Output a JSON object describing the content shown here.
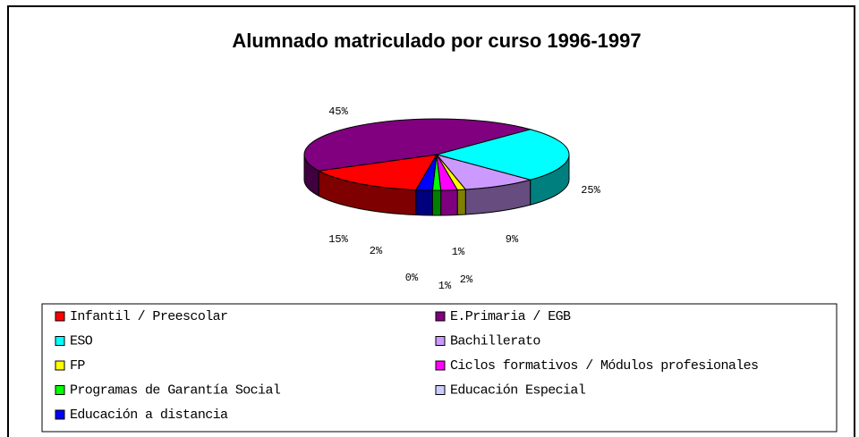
{
  "chart_data": {
    "type": "pie3d",
    "title": "Alumnado matriculado por curso 1996-1997",
    "categories": [
      "Infantil / Preescolar",
      "E.Primaria / EGB",
      "ESO",
      "Bachillerato",
      "FP",
      "Ciclos formativos / Módulos profesionales",
      "Programas de Garantía Social",
      "Educación Especial",
      "Educación a distancia"
    ],
    "values": [
      15,
      45,
      25,
      9,
      1,
      2,
      1,
      0,
      2
    ],
    "value_labels": [
      "15%",
      "45%",
      "25%",
      "9%",
      "1%",
      "2%",
      "1%",
      "0%",
      "2%"
    ],
    "colors": [
      "#ff0000",
      "#800080",
      "#00ffff",
      "#cc99ff",
      "#ffff00",
      "#ff00ff",
      "#00ff00",
      "#ccccff",
      "#0000ff"
    ],
    "legend": "bottom"
  }
}
